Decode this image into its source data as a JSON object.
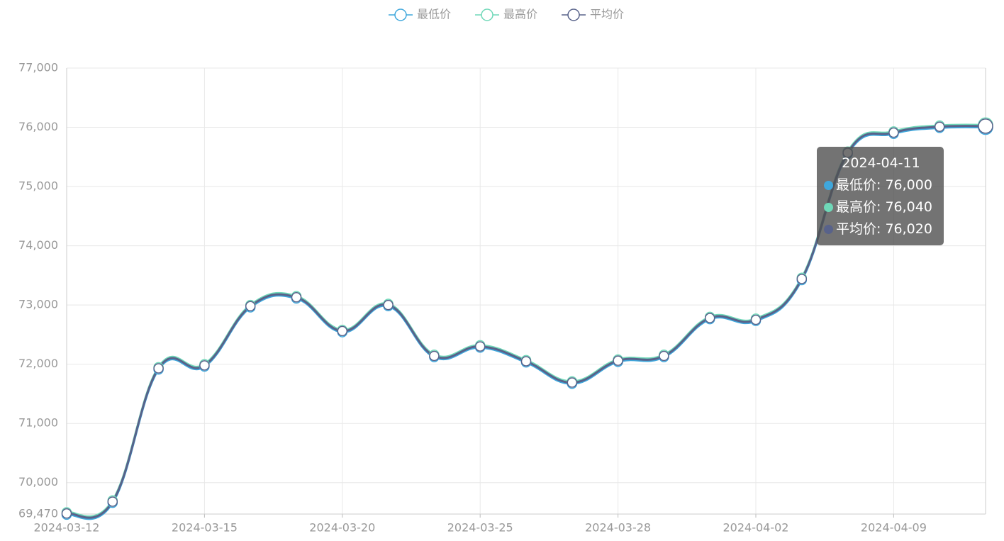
{
  "chart_data": {
    "type": "line",
    "smooth": true,
    "categories": [
      "2024-03-12",
      null,
      null,
      "2024-03-15",
      null,
      null,
      "2024-03-20",
      null,
      null,
      "2024-03-25",
      null,
      null,
      "2024-03-28",
      null,
      null,
      "2024-04-02",
      null,
      null,
      "2024-04-09",
      null,
      "2024-04-11"
    ],
    "series": [
      {
        "name": "最低价",
        "color": "#3fa7dc",
        "values": [
          69460,
          69660,
          71910,
          71960,
          72960,
          73110,
          72540,
          72980,
          72120,
          72280,
          72030,
          71670,
          72040,
          72120,
          72760,
          72730,
          73420,
          75550,
          75890,
          75990,
          76000
        ]
      },
      {
        "name": "最高价",
        "color": "#6fd8b8",
        "values": [
          69500,
          69700,
          71950,
          72000,
          73000,
          73150,
          72580,
          73020,
          72160,
          72320,
          72070,
          71710,
          72080,
          72160,
          72800,
          72770,
          73460,
          75590,
          75930,
          76030,
          76040
        ]
      },
      {
        "name": "平均价",
        "color": "#58628a",
        "values": [
          69480,
          69680,
          71930,
          71980,
          72980,
          73130,
          72560,
          73000,
          72140,
          72300,
          72050,
          71690,
          72060,
          72140,
          72780,
          72750,
          73440,
          75570,
          75910,
          76010,
          76020
        ]
      }
    ],
    "ylim": [
      69470,
      77000
    ],
    "yticks": [
      {
        "value": 69470,
        "label": "69,470"
      },
      {
        "value": 70000,
        "label": "70,000"
      },
      {
        "value": 71000,
        "label": "71,000"
      },
      {
        "value": 72000,
        "label": "72,000"
      },
      {
        "value": 73000,
        "label": "73,000"
      },
      {
        "value": 74000,
        "label": "74,000"
      },
      {
        "value": 75000,
        "label": "75,000"
      },
      {
        "value": 76000,
        "label": "76,000"
      },
      {
        "value": 77000,
        "label": "77,000"
      }
    ],
    "grid": true,
    "legend": "top",
    "tooltip": {
      "index": 20,
      "title": "2024-04-11",
      "lines": [
        "最低价: 76,000",
        "最高价: 76,040",
        "平均价: 76,020"
      ]
    }
  }
}
